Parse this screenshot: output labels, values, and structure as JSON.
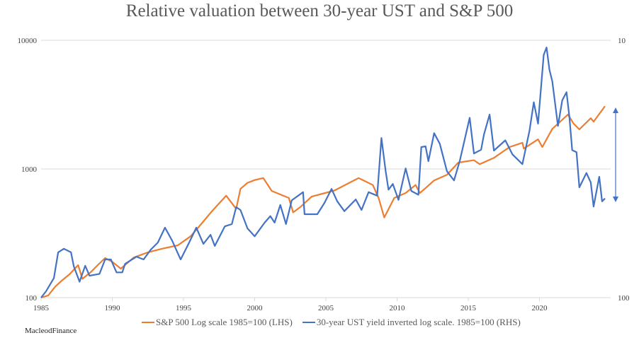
{
  "chart_data": {
    "type": "line",
    "title": "Relative valuation between 30-year UST and S&P 500",
    "xlabel": "",
    "ylabel": "",
    "x_ticks": [
      "1985",
      "1990",
      "1995",
      "2000",
      "2005",
      "2010",
      "2015",
      "2020"
    ],
    "xlim": [
      1985,
      2025
    ],
    "y_left": {
      "scale": "log",
      "range": [
        100,
        10000
      ],
      "ticks": [
        "100",
        "1000",
        "10000"
      ]
    },
    "y_right": {
      "scale": "log",
      "inverted": true,
      "ticks": [
        "10",
        "100"
      ]
    },
    "grid": true,
    "legend": "bottom",
    "series": [
      {
        "name": "S&P 500 Log scale 1985=100 (LHS)",
        "color": "#ED7D31",
        "x": [
          1985.0,
          1985.5,
          1986.0,
          1986.5,
          1987.0,
          1987.6,
          1987.9,
          1988.5,
          1989.0,
          1989.5,
          1990.0,
          1990.6,
          1991.5,
          1992.5,
          1993.5,
          1994.6,
          1995.5,
          1996.2,
          1997.0,
          1998.0,
          1998.7,
          1999.0,
          1999.5,
          2000.0,
          2000.6,
          2001.2,
          2002.4,
          2002.7,
          2003.2,
          2004.0,
          2005.6,
          2007.3,
          2008.3,
          2008.7,
          2009.1,
          2009.8,
          2010.6,
          2011.3,
          2011.6,
          2012.0,
          2012.6,
          2013.5,
          2014.3,
          2015.4,
          2015.8,
          2016.8,
          2017.9,
          2018.8,
          2018.9,
          2019.9,
          2020.2,
          2020.9,
          2022.0,
          2022.4,
          2022.8,
          2023.6,
          2023.8,
          2024.6
        ],
        "values": [
          100,
          104,
          122,
          137,
          152,
          179,
          140,
          158,
          180,
          203,
          190,
          168,
          205,
          225,
          240,
          255,
          300,
          368,
          470,
          620,
          490,
          700,
          780,
          820,
          850,
          675,
          595,
          460,
          505,
          610,
          680,
          850,
          750,
          595,
          420,
          595,
          650,
          750,
          650,
          710,
          815,
          900,
          1120,
          1170,
          1090,
          1220,
          1480,
          1600,
          1440,
          1700,
          1480,
          2050,
          2650,
          2250,
          2030,
          2480,
          2330,
          3080
        ]
      },
      {
        "name": "30-year UST yield inverted log scale. 1985=100 (RHS)",
        "color": "#4472C4",
        "x": [
          1985.0,
          1985.35,
          1985.9,
          1986.2,
          1986.6,
          1987.1,
          1987.3,
          1987.7,
          1988.1,
          1988.4,
          1989.1,
          1989.5,
          1989.9,
          1990.3,
          1990.7,
          1990.9,
          1991.7,
          1992.2,
          1992.7,
          1993.2,
          1993.7,
          1994.2,
          1994.8,
          1995.4,
          1995.9,
          1996.4,
          1996.9,
          1997.2,
          1997.9,
          1998.4,
          1998.7,
          1999.0,
          1999.5,
          2000.0,
          2000.7,
          2001.1,
          2001.4,
          2001.8,
          2002.2,
          2002.6,
          2003.4,
          2003.5,
          2004.4,
          2004.9,
          2005.4,
          2005.8,
          2006.3,
          2007.1,
          2007.5,
          2008.0,
          2008.6,
          2008.9,
          2009.2,
          2009.4,
          2009.7,
          2010.1,
          2010.6,
          2011.0,
          2011.5,
          2011.7,
          2012.0,
          2012.2,
          2012.6,
          2013.0,
          2013.5,
          2014.0,
          2014.4,
          2015.1,
          2015.4,
          2015.9,
          2016.1,
          2016.5,
          2016.8,
          2017.6,
          2018.1,
          2018.8,
          2019.3,
          2019.6,
          2019.9,
          2020.3,
          2020.5,
          2020.7,
          2020.9,
          2021.3,
          2021.6,
          2021.9,
          2022.1,
          2022.3,
          2022.6,
          2022.8,
          2023.3,
          2023.6,
          2023.8,
          2024.2,
          2024.4,
          2024.6
        ],
        "values": [
          100,
          112,
          142,
          225,
          240,
          225,
          175,
          133,
          177,
          148,
          153,
          198,
          198,
          157,
          157,
          183,
          208,
          198,
          236,
          268,
          350,
          278,
          198,
          268,
          350,
          262,
          308,
          252,
          358,
          373,
          505,
          480,
          345,
          300,
          383,
          430,
          383,
          525,
          373,
          570,
          660,
          445,
          445,
          545,
          700,
          560,
          470,
          580,
          480,
          660,
          620,
          1740,
          960,
          690,
          765,
          575,
          1010,
          675,
          630,
          1480,
          1500,
          1150,
          1900,
          1570,
          960,
          815,
          1150,
          2500,
          1320,
          1410,
          1850,
          2650,
          1390,
          1670,
          1300,
          1090,
          1980,
          3300,
          2250,
          7700,
          8800,
          5900,
          4800,
          2160,
          3420,
          3950,
          2550,
          1400,
          1350,
          720,
          930,
          785,
          510,
          870,
          560,
          590
        ]
      }
    ]
  },
  "credit": "MacleodFinance"
}
